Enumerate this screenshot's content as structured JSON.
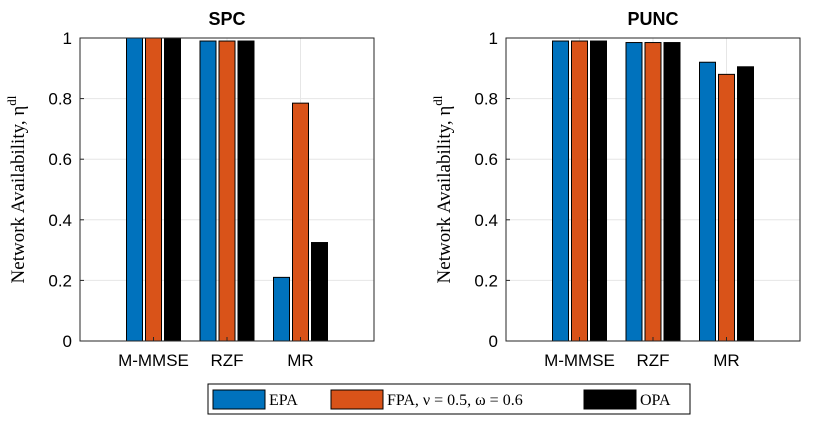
{
  "colors": {
    "EPA": "#0072BD",
    "FPA": "#D95319",
    "OPA": "#000000"
  },
  "legend": {
    "entries": [
      {
        "key": "EPA",
        "label": "EPA"
      },
      {
        "key": "FPA",
        "label": "FPA, ν = 0.5, ω = 0.6"
      },
      {
        "key": "OPA",
        "label": "OPA"
      }
    ]
  },
  "chart_data": [
    {
      "type": "bar",
      "title": "SPC",
      "ylabel": "Network Availability, η",
      "ylabel_sup": "dl",
      "ylim": [
        0,
        1
      ],
      "yticks": [
        "0",
        "0.2",
        "0.4",
        "0.6",
        "0.8",
        "1"
      ],
      "categories": [
        "M-MMSE",
        "RZF",
        "MR"
      ],
      "series": [
        {
          "name": "EPA",
          "values": [
            1.0,
            0.99,
            0.21
          ]
        },
        {
          "name": "FPA",
          "values": [
            1.0,
            0.99,
            0.785
          ]
        },
        {
          "name": "OPA",
          "values": [
            1.0,
            0.99,
            0.325
          ]
        }
      ],
      "grid": true
    },
    {
      "type": "bar",
      "title": "PUNC",
      "ylabel": "Network Availability, η",
      "ylabel_sup": "dl",
      "ylim": [
        0,
        1
      ],
      "yticks": [
        "0",
        "0.2",
        "0.4",
        "0.6",
        "0.8",
        "1"
      ],
      "categories": [
        "M-MMSE",
        "RZF",
        "MR"
      ],
      "series": [
        {
          "name": "EPA",
          "values": [
            0.99,
            0.985,
            0.92
          ]
        },
        {
          "name": "FPA",
          "values": [
            0.99,
            0.985,
            0.88
          ]
        },
        {
          "name": "OPA",
          "values": [
            0.99,
            0.985,
            0.905
          ]
        }
      ],
      "grid": true
    }
  ]
}
